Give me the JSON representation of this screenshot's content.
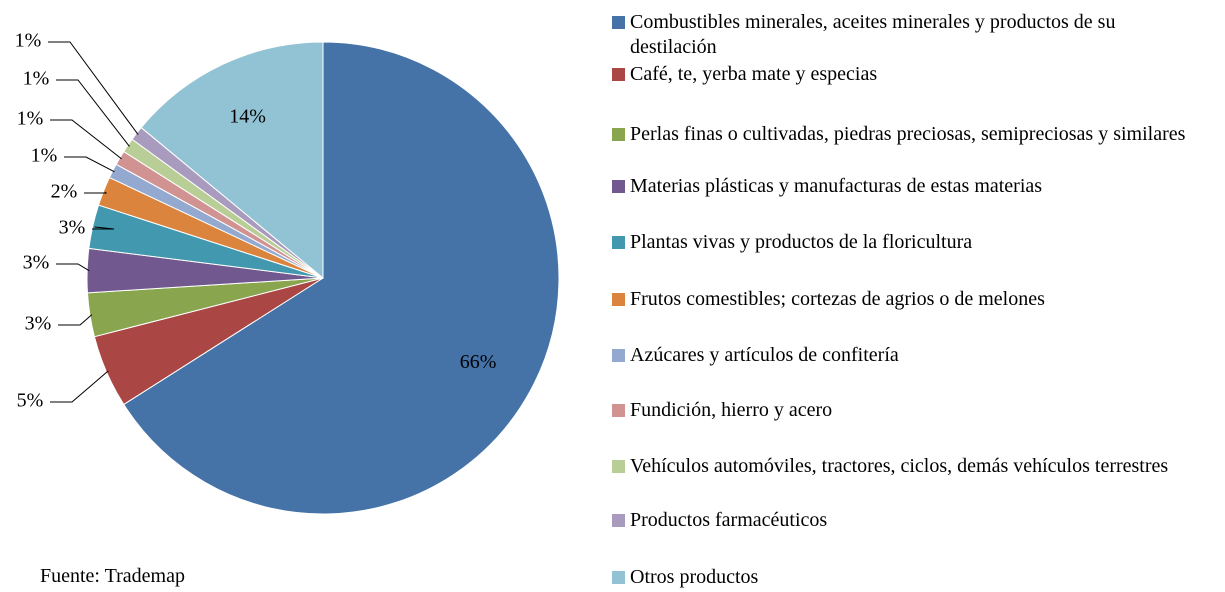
{
  "chart_data": {
    "type": "pie",
    "categories": [
      "Combustibles minerales, aceites minerales y productos de su destilación",
      "Café, te, yerba mate y especias",
      "Perlas finas o cultivadas, piedras preciosas, semipreciosas y similares",
      "Materias plásticas y manufacturas de estas materias",
      "Plantas vivas y productos de la floricultura",
      "Frutos comestibles; cortezas de agrios o de melones",
      "Azúcares y artículos de confitería",
      "Fundición, hierro y acero",
      "Vehículos automóviles, tractores, ciclos, demás vehículos terrestres",
      "Productos farmacéuticos",
      "Otros productos"
    ],
    "values": [
      66,
      5,
      3,
      3,
      3,
      2,
      1,
      1,
      1,
      1,
      14
    ],
    "value_labels": [
      "66%",
      "5%",
      "3%",
      "3%",
      "3%",
      "2%",
      "1%",
      "1%",
      "1%",
      "1%",
      "14%"
    ],
    "colors": [
      "#4572a7",
      "#aa4643",
      "#89a54e",
      "#71588f",
      "#4198af",
      "#db843d",
      "#93a9cf",
      "#d19392",
      "#b9cd96",
      "#a99bbd",
      "#92c3d4"
    ],
    "legend": "right",
    "source": "Fuente: Trademap"
  }
}
